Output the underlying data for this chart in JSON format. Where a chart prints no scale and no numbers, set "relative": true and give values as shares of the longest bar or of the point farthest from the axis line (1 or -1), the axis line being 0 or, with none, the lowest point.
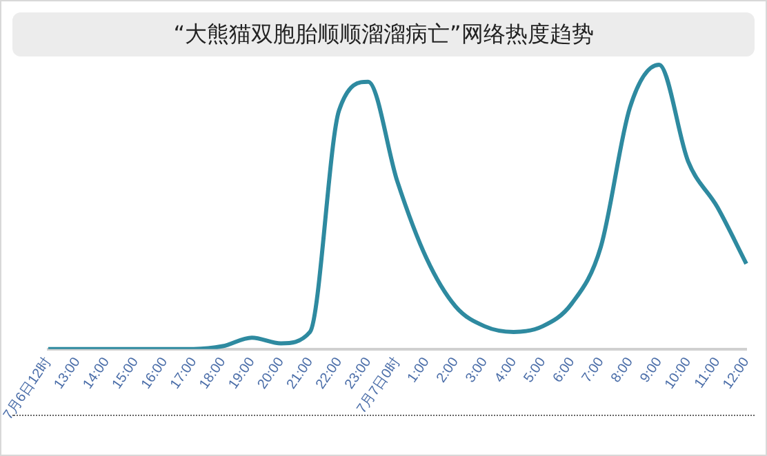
{
  "chart_data": {
    "type": "line",
    "title": "“大熊猫双胞胎顺顺溜溜病亡”网络热度趋势",
    "relative": true,
    "categories": [
      "7月6日12时",
      "13:00",
      "14:00",
      "15:00",
      "16:00",
      "17:00",
      "18:00",
      "19:00",
      "20:00",
      "21:00",
      "22:00",
      "23:00",
      "7月7日0时",
      "1:00",
      "2:00",
      "3:00",
      "4:00",
      "5:00",
      "6:00",
      "7:00",
      "8:00",
      "9:00",
      "10:00",
      "11:00",
      "12:00"
    ],
    "series": [
      {
        "color": "#2e8aa0",
        "values": [
          0,
          0,
          0,
          0,
          0,
          0,
          0.01,
          0.04,
          0.02,
          0.06,
          0.84,
          0.94,
          0.59,
          0.32,
          0.15,
          0.08,
          0.06,
          0.08,
          0.16,
          0.36,
          0.85,
          1,
          0.66,
          0.5,
          0.3
        ]
      }
    ],
    "grid": false,
    "legend": false,
    "marker": "none",
    "line_style": "solid"
  }
}
